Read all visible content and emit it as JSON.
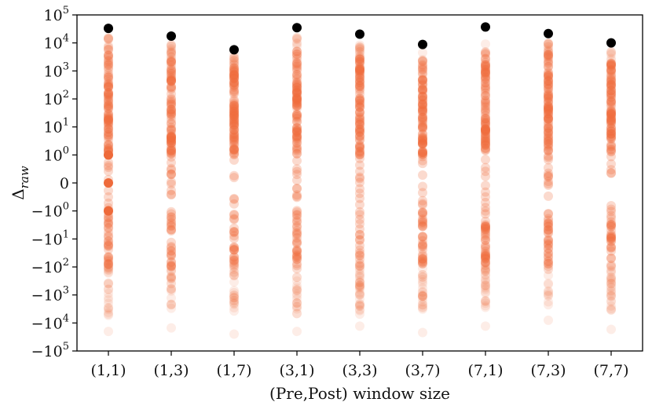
{
  "chart_data": {
    "type": "scatter",
    "xlabel": "(Pre,Post) window size",
    "ylabel": "Δ",
    "ylabel_subscript": "raw",
    "yscale": "symlog",
    "ylim": [
      -100000,
      100000
    ],
    "grid": false,
    "categories": [
      "(1,1)",
      "(1,3)",
      "(1,7)",
      "(3,1)",
      "(3,3)",
      "(3,7)",
      "(7,1)",
      "(7,3)",
      "(7,7)"
    ],
    "y_ticks": [
      {
        "value": 100000,
        "base": "10",
        "exp": "5",
        "sign": ""
      },
      {
        "value": 10000,
        "base": "10",
        "exp": "4",
        "sign": ""
      },
      {
        "value": 1000,
        "base": "10",
        "exp": "3",
        "sign": ""
      },
      {
        "value": 100,
        "base": "10",
        "exp": "2",
        "sign": ""
      },
      {
        "value": 10,
        "base": "10",
        "exp": "1",
        "sign": ""
      },
      {
        "value": 1,
        "base": "10",
        "exp": "0",
        "sign": ""
      },
      {
        "value": 0,
        "base": "0",
        "exp": "",
        "sign": ""
      },
      {
        "value": -1,
        "base": "10",
        "exp": "0",
        "sign": "−"
      },
      {
        "value": -10,
        "base": "10",
        "exp": "1",
        "sign": "−"
      },
      {
        "value": -100,
        "base": "10",
        "exp": "2",
        "sign": "−"
      },
      {
        "value": -1000,
        "base": "10",
        "exp": "3",
        "sign": "−"
      },
      {
        "value": -10000,
        "base": "10",
        "exp": "4",
        "sign": "−"
      },
      {
        "value": -100000,
        "base": "10",
        "exp": "5",
        "sign": "−"
      }
    ],
    "max_points": [
      {
        "category": "(1,1)",
        "y": 33000
      },
      {
        "category": "(1,3)",
        "y": 17500
      },
      {
        "category": "(1,7)",
        "y": 5700
      },
      {
        "category": "(3,1)",
        "y": 35000
      },
      {
        "category": "(3,3)",
        "y": 20500
      },
      {
        "category": "(3,7)",
        "y": 8800
      },
      {
        "category": "(7,1)",
        "y": 37000
      },
      {
        "category": "(7,3)",
        "y": 21500
      },
      {
        "category": "(7,7)",
        "y": 10000
      }
    ],
    "distribution_ranges": [
      {
        "category": "(1,1)",
        "pos_max": 16000,
        "neg_min": -6000,
        "neg_outlier": -20000,
        "small_values": [
          1,
          0,
          -1
        ]
      },
      {
        "category": "(1,3)",
        "pos_max": 9000,
        "neg_min": -3500,
        "neg_outlier": -15000,
        "small_values": []
      },
      {
        "category": "(1,7)",
        "pos_max": 4000,
        "neg_min": -4000,
        "neg_outlier": -25000,
        "small_values": []
      },
      {
        "category": "(3,1)",
        "pos_max": 16000,
        "neg_min": -5000,
        "neg_outlier": -20000,
        "small_values": []
      },
      {
        "category": "(3,3)",
        "pos_max": 9000,
        "neg_min": -5000,
        "neg_outlier": -13000,
        "small_values": []
      },
      {
        "category": "(3,7)",
        "pos_max": 5000,
        "neg_min": -3500,
        "neg_outlier": -22000,
        "small_values": []
      },
      {
        "category": "(7,1)",
        "pos_max": 17000,
        "neg_min": -3500,
        "neg_outlier": -13000,
        "small_values": []
      },
      {
        "category": "(7,3)",
        "pos_max": 10000,
        "neg_min": -2500,
        "neg_outlier": -8000,
        "small_values": []
      },
      {
        "category": "(7,7)",
        "pos_max": 5000,
        "neg_min": -4000,
        "neg_outlier": -17000,
        "small_values": []
      }
    ],
    "colors": {
      "distribution": "#ee6a3a",
      "max": "#000000",
      "axis": "#000000"
    }
  }
}
